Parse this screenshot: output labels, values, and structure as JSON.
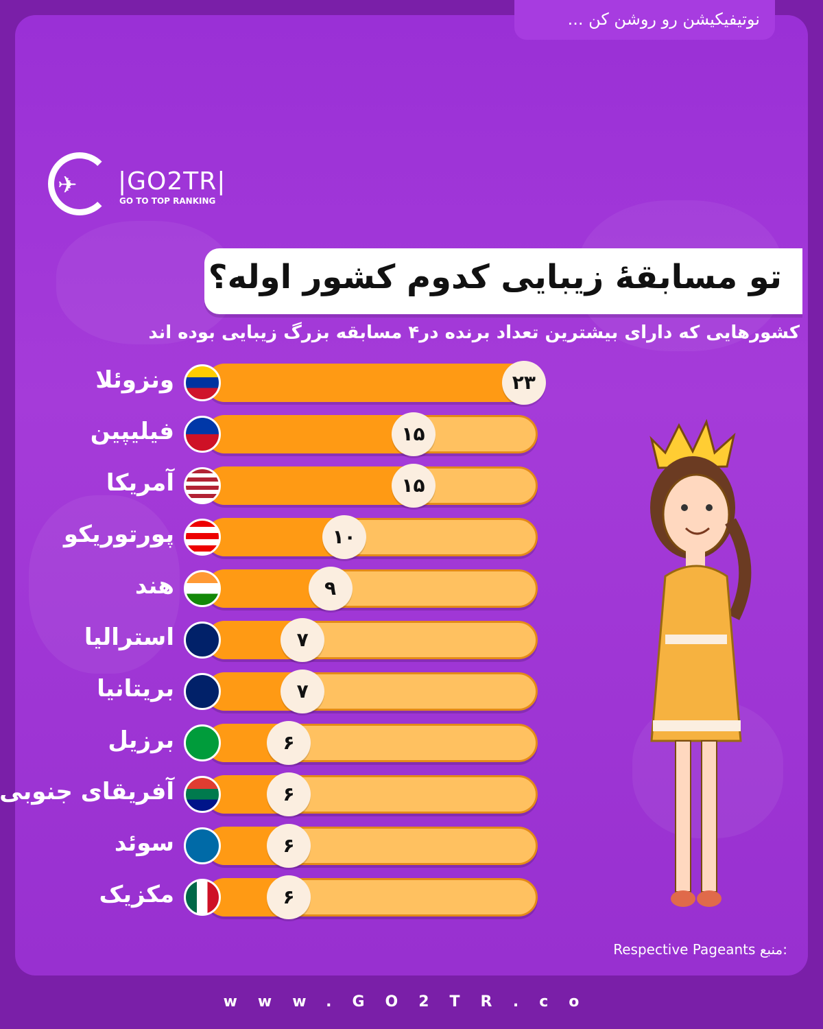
{
  "notification": "نوتیفیکیشن رو روشن کن ...",
  "logo": {
    "brand": "|GO2TR|",
    "tagline": "GO TO TOP RANKING"
  },
  "title": "تو مسابقهٔ زیبایی کدوم کشور اوله؟",
  "subtitle": "کشورهایی که دارای بیشترین تعداد برنده در۴ مسابقه بزرگ زیبایی بوده اند",
  "source_label": "منبع:",
  "source_value": "Respective Pageants",
  "footer": "www.GO2TR.co",
  "colors": {
    "background": "#9a30d6",
    "bar": "#ff9a14",
    "track": "#ffc160",
    "badge": "#fbeee0"
  },
  "chart_data": {
    "type": "bar",
    "orientation": "horizontal",
    "title": "تو مسابقهٔ زیبایی کدوم کشور اوله؟",
    "categories": [
      "ونزوئلا",
      "فیلیپین",
      "آمریکا",
      "پورتوریکو",
      "هند",
      "استرالیا",
      "بریتانیا",
      "برزیل",
      "آفریقای جنوبی",
      "سوئد",
      "مکزیک"
    ],
    "values": [
      23,
      15,
      15,
      10,
      9,
      7,
      7,
      6,
      6,
      6,
      6
    ],
    "value_labels": [
      "۲۳",
      "۱۵",
      "۱۵",
      "۱۰",
      "۹",
      "۷",
      "۷",
      "۶",
      "۶",
      "۶",
      "۶"
    ],
    "flags": [
      "venezuela-flag-icon",
      "philippines-flag-icon",
      "usa-flag-icon",
      "puerto-rico-flag-icon",
      "india-flag-icon",
      "australia-flag-icon",
      "uk-flag-icon",
      "brazil-flag-icon",
      "south-africa-flag-icon",
      "sweden-flag-icon",
      "mexico-flag-icon"
    ],
    "xlim": [
      0,
      24
    ],
    "grid": false,
    "legend": "none"
  }
}
